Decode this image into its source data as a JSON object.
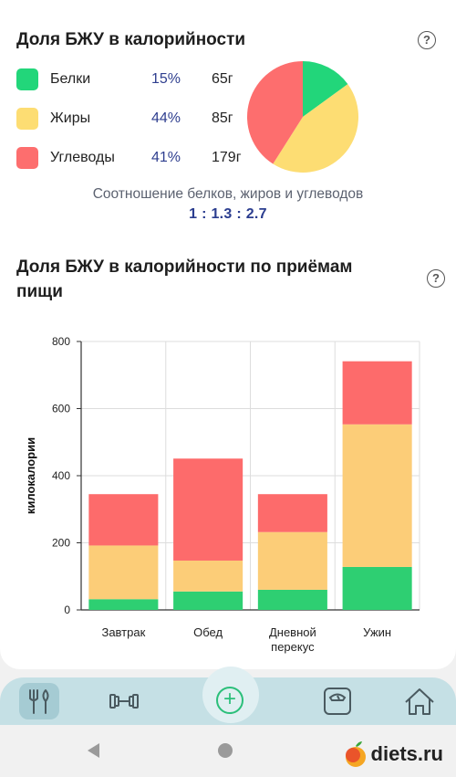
{
  "section1": {
    "title": "Доля БЖУ в калорийности",
    "help_symbol": "?",
    "legend": [
      {
        "label": "Белки",
        "percent": "15%",
        "grams": "65г",
        "color": "#22d67a"
      },
      {
        "label": "Жиры",
        "percent": "44%",
        "grams": "85г",
        "color": "#fddd73"
      },
      {
        "label": "Углеводы",
        "percent": "41%",
        "grams": "179г",
        "color": "#fd6e6e"
      }
    ],
    "ratio_caption": "Соотношение белков, жиров и углеводов",
    "ratio_value": "1 : 1.3 : 2.7"
  },
  "section2": {
    "title_line1": "Доля БЖУ в калорийности по приёмам",
    "title_line2": "пищи",
    "help_symbol": "?"
  },
  "chart_data": [
    {
      "type": "pie",
      "categories": [
        "Белки",
        "Жиры",
        "Углеводы"
      ],
      "values": [
        15,
        44,
        41
      ],
      "colors": [
        "#22d67a",
        "#fddd73",
        "#fd6e6e"
      ]
    },
    {
      "type": "bar",
      "stacked": true,
      "categories": [
        "Завтрак",
        "Обед",
        "Дневной перекус",
        "Ужин"
      ],
      "category_lines": [
        [
          "Завтрак"
        ],
        [
          "Обед"
        ],
        [
          "Дневной",
          "перекус"
        ],
        [
          "Ужин"
        ]
      ],
      "series": [
        {
          "values": [
            32,
            55,
            60,
            128
          ],
          "color": "#2ecf72"
        },
        {
          "values": [
            160,
            92,
            172,
            425
          ],
          "color": "#fccd78"
        },
        {
          "values": [
            153,
            304,
            113,
            188
          ],
          "color": "#fd6b6b"
        }
      ],
      "ylabel": "килокалории",
      "ylim": [
        0,
        800
      ],
      "yticks": [
        0,
        200,
        400,
        600,
        800
      ],
      "grid": true
    }
  ],
  "tabbar": {
    "items": [
      {
        "name": "food",
        "icon": "fork-spoon-icon",
        "active": true
      },
      {
        "name": "workout",
        "icon": "dumbbell-icon",
        "active": false
      },
      {
        "name": "add",
        "icon": "plus-circle-icon",
        "active": false
      },
      {
        "name": "weight",
        "icon": "scale-icon",
        "active": false
      },
      {
        "name": "home",
        "icon": "home-icon",
        "active": false
      }
    ],
    "accent": "#2bbf7a"
  },
  "system_nav": {
    "back_icon": "back-triangle-icon",
    "home_icon": "home-circle-icon"
  },
  "watermark": {
    "text": "diets.ru"
  }
}
